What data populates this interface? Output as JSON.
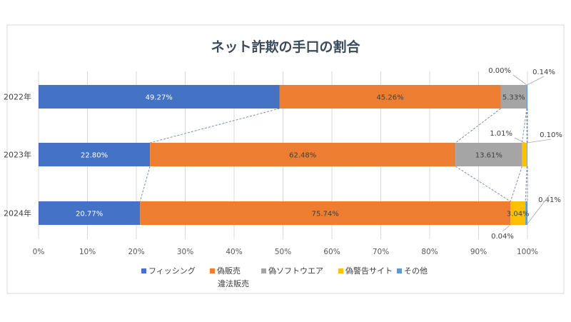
{
  "chart_data": {
    "type": "bar",
    "orientation": "horizontal",
    "stacked": "100%",
    "title": "ネット詐欺の手口の割合",
    "categories": [
      "2022年",
      "2023年",
      "2024年"
    ],
    "series": [
      {
        "name": "フィッシング",
        "color": "#4472C4",
        "values": [
          49.27,
          22.8,
          20.77
        ],
        "labels": [
          "49.27%",
          "22.80%",
          "20.77%"
        ]
      },
      {
        "name": "偽販売",
        "color": "#ED7D31",
        "values": [
          45.26,
          62.48,
          75.74
        ],
        "labels": [
          "45.26%",
          "62.48%",
          "75.74%"
        ]
      },
      {
        "name": "偽ソフトウエア",
        "color": "#A5A5A5",
        "values": [
          5.33,
          13.61,
          0.04
        ],
        "labels": [
          "5.33%",
          "13.61%",
          "0.04%"
        ]
      },
      {
        "name": "偽警告サイト",
        "color": "#FFC000",
        "values": [
          0.0,
          1.01,
          3.04
        ],
        "labels": [
          "0.00%",
          "1.01%",
          "3.04%"
        ]
      },
      {
        "name": "その他",
        "color": "#5B9BD5",
        "values": [
          0.14,
          0.1,
          0.41
        ],
        "labels": [
          "0.14%",
          "0.10%",
          "0.41%"
        ]
      }
    ],
    "x_ticks": [
      "0%",
      "10%",
      "20%",
      "30%",
      "40%",
      "50%",
      "60%",
      "70%",
      "80%",
      "90%",
      "100%"
    ],
    "xlim": [
      0,
      100
    ],
    "legend": {
      "position": "bottom",
      "items": [
        "フィッシング",
        "偽販売",
        "偽ソフトウエア",
        "偽警告サイト",
        "その他"
      ],
      "extra_line": "違法販売"
    },
    "grid": {
      "vertical": true
    }
  }
}
